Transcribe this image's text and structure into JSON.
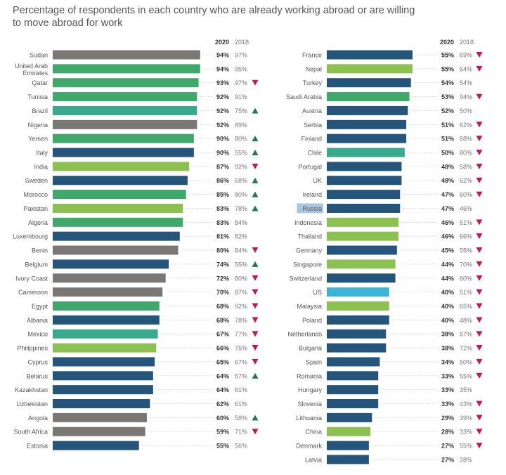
{
  "title": "Percentage of respondents in each country who are already working abroad or are willing to move abroad for work",
  "colors": {
    "gray": "#7a7775",
    "green": "#3fa86a",
    "teal": "#3aaa8f",
    "navy": "#25557a",
    "lime": "#8cc152",
    "cyan": "#3ab5d8",
    "up": "#1e7a52",
    "down": "#c2185b",
    "highlight": "#aac7e0"
  },
  "chart_data": {
    "type": "bar",
    "orientation": "horizontal",
    "x_range": [
      0,
      100
    ],
    "value_headers": [
      "2020",
      "2018"
    ],
    "panels": [
      {
        "rows": [
          {
            "country": "Sudan",
            "v2020": 94,
            "v2018": 97,
            "label2020": "94%",
            "label2018": "97%",
            "trend": "",
            "color": "gray"
          },
          {
            "country": "United Arab Emirates",
            "v2020": 94,
            "v2018": 95,
            "label2020": "94%",
            "label2018": "95%",
            "trend": "",
            "color": "green"
          },
          {
            "country": "Qatar",
            "v2020": 93,
            "v2018": 97,
            "label2020": "93%",
            "label2018": "97%",
            "trend": "down",
            "color": "green"
          },
          {
            "country": "Tunisia",
            "v2020": 92,
            "v2018": 91,
            "label2020": "92%",
            "label2018": "91%",
            "trend": "",
            "color": "green"
          },
          {
            "country": "Brazil",
            "v2020": 92,
            "v2018": 75,
            "label2020": "92%",
            "label2018": "75%",
            "trend": "up",
            "color": "teal"
          },
          {
            "country": "Nigeria",
            "v2020": 92,
            "v2018": 89,
            "label2020": "92%",
            "label2018": "89%",
            "trend": "",
            "color": "gray"
          },
          {
            "country": "Yemen",
            "v2020": 90,
            "v2018": 80,
            "label2020": "90%",
            "label2018": "80%",
            "trend": "up",
            "color": "green"
          },
          {
            "country": "Italy",
            "v2020": 90,
            "v2018": 55,
            "label2020": "90%",
            "label2018": "55%",
            "trend": "up",
            "color": "navy"
          },
          {
            "country": "India",
            "v2020": 87,
            "v2018": 92,
            "label2020": "87%",
            "label2018": "92%",
            "trend": "down",
            "color": "lime"
          },
          {
            "country": "Sweden",
            "v2020": 86,
            "v2018": 68,
            "label2020": "86%",
            "label2018": "68%",
            "trend": "up",
            "color": "navy"
          },
          {
            "country": "Morocco",
            "v2020": 85,
            "v2018": 80,
            "label2020": "85%",
            "label2018": "80%",
            "trend": "up",
            "color": "green"
          },
          {
            "country": "Pakistan",
            "v2020": 83,
            "v2018": 78,
            "label2020": "83%",
            "label2018": "78%",
            "trend": "up",
            "color": "lime"
          },
          {
            "country": "Algeria",
            "v2020": 83,
            "v2018": 84,
            "label2020": "83%",
            "label2018": "84%",
            "trend": "",
            "color": "green"
          },
          {
            "country": "Luxembourg",
            "v2020": 81,
            "v2018": 82,
            "label2020": "81%",
            "label2018": "82%",
            "trend": "",
            "color": "navy"
          },
          {
            "country": "Benin",
            "v2020": 80,
            "v2018": 84,
            "label2020": "80%",
            "label2018": "84%",
            "trend": "down",
            "color": "gray"
          },
          {
            "country": "Belgium",
            "v2020": 74,
            "v2018": 55,
            "label2020": "74%",
            "label2018": "55%",
            "trend": "up",
            "color": "navy"
          },
          {
            "country": "Ivory Coast",
            "v2020": 72,
            "v2018": 80,
            "label2020": "72%",
            "label2018": "80%",
            "trend": "down",
            "color": "gray"
          },
          {
            "country": "Cameroon",
            "v2020": 70,
            "v2018": 87,
            "label2020": "70%",
            "label2018": "87%",
            "trend": "down",
            "color": "gray"
          },
          {
            "country": "Egypt",
            "v2020": 68,
            "v2018": 92,
            "label2020": "68%",
            "label2018": "92%",
            "trend": "down",
            "color": "green"
          },
          {
            "country": "Albania",
            "v2020": 68,
            "v2018": 78,
            "label2020": "68%",
            "label2018": "78%",
            "trend": "down",
            "color": "navy"
          },
          {
            "country": "Mexico",
            "v2020": 67,
            "v2018": 77,
            "label2020": "67%",
            "label2018": "77%",
            "trend": "down",
            "color": "teal"
          },
          {
            "country": "Philippines",
            "v2020": 66,
            "v2018": 75,
            "label2020": "66%",
            "label2018": "75%",
            "trend": "down",
            "color": "lime"
          },
          {
            "country": "Cyprus",
            "v2020": 65,
            "v2018": 67,
            "label2020": "65%",
            "label2018": "67%",
            "trend": "down",
            "color": "navy"
          },
          {
            "country": "Belarus",
            "v2020": 64,
            "v2018": 57,
            "label2020": "64%",
            "label2018": "57%",
            "trend": "up",
            "color": "navy"
          },
          {
            "country": "Kazakhstan",
            "v2020": 64,
            "v2018": 61,
            "label2020": "64%",
            "label2018": "61%",
            "trend": "",
            "color": "navy"
          },
          {
            "country": "Uzbekistan",
            "v2020": 62,
            "v2018": 61,
            "label2020": "62%",
            "label2018": "61%",
            "trend": "",
            "color": "navy"
          },
          {
            "country": "Angola",
            "v2020": 60,
            "v2018": 58,
            "label2020": "60%",
            "label2018": "58%",
            "trend": "up",
            "color": "gray"
          },
          {
            "country": "South Africa",
            "v2020": 59,
            "v2018": 71,
            "label2020": "59%",
            "label2018": "71%",
            "trend": "down",
            "color": "gray"
          },
          {
            "country": "Estonia",
            "v2020": 55,
            "v2018": 56,
            "label2020": "55%",
            "label2018": "56%",
            "trend": "",
            "color": "navy"
          }
        ]
      },
      {
        "rows": [
          {
            "country": "France",
            "v2020": 55,
            "v2018": 69,
            "label2020": "55%",
            "label2018": "69%",
            "trend": "down",
            "color": "navy"
          },
          {
            "country": "Nepal",
            "v2020": 55,
            "v2018": 64,
            "label2020": "55%",
            "label2018": "64%",
            "trend": "down",
            "color": "lime"
          },
          {
            "country": "Turkey",
            "v2020": 54,
            "v2018": 54,
            "label2020": "54%",
            "label2018": "54%",
            "trend": "",
            "color": "navy"
          },
          {
            "country": "Saudi Arabia",
            "v2020": 53,
            "v2018": 94,
            "label2020": "53%",
            "label2018": "94%",
            "trend": "down",
            "color": "green"
          },
          {
            "country": "Austria",
            "v2020": 52,
            "v2018": 50,
            "label2020": "52%",
            "label2018": "50%",
            "trend": "",
            "color": "navy"
          },
          {
            "country": "Serbia",
            "v2020": 51,
            "v2018": 62,
            "label2020": "51%",
            "label2018": "62%",
            "trend": "down",
            "color": "navy"
          },
          {
            "country": "Finland",
            "v2020": 51,
            "v2018": 68,
            "label2020": "51%",
            "label2018": "68%",
            "trend": "down",
            "color": "navy"
          },
          {
            "country": "Chile",
            "v2020": 50,
            "v2018": 80,
            "label2020": "50%",
            "label2018": "80%",
            "trend": "down",
            "color": "teal"
          },
          {
            "country": "Portugal",
            "v2020": 48,
            "v2018": 58,
            "label2020": "48%",
            "label2018": "58%",
            "trend": "down",
            "color": "navy"
          },
          {
            "country": "UK",
            "v2020": 48,
            "v2018": 62,
            "label2020": "48%",
            "label2018": "62%",
            "trend": "down",
            "color": "navy"
          },
          {
            "country": "Ireland",
            "v2020": 47,
            "v2018": 60,
            "label2020": "47%",
            "label2018": "60%",
            "trend": "down",
            "color": "navy"
          },
          {
            "country": "Russia",
            "v2020": 47,
            "v2018": 46,
            "label2020": "47%",
            "label2018": "46%",
            "trend": "",
            "color": "navy",
            "highlighted": true
          },
          {
            "country": "Indonesia",
            "v2020": 46,
            "v2018": 51,
            "label2020": "46%",
            "label2018": "51%",
            "trend": "down",
            "color": "lime"
          },
          {
            "country": "Thailand",
            "v2020": 46,
            "v2018": 66,
            "label2020": "46%",
            "label2018": "66%",
            "trend": "down",
            "color": "lime"
          },
          {
            "country": "Germany",
            "v2020": 45,
            "v2018": 55,
            "label2020": "45%",
            "label2018": "55%",
            "trend": "down",
            "color": "navy"
          },
          {
            "country": "Singapore",
            "v2020": 44,
            "v2018": 70,
            "label2020": "44%",
            "label2018": "70%",
            "trend": "down",
            "color": "lime"
          },
          {
            "country": "Switzerland",
            "v2020": 44,
            "v2018": 60,
            "label2020": "44%",
            "label2018": "60%",
            "trend": "down",
            "color": "navy"
          },
          {
            "country": "US",
            "v2020": 40,
            "v2018": 51,
            "label2020": "40%",
            "label2018": "51%",
            "trend": "down",
            "color": "cyan"
          },
          {
            "country": "Malaysia",
            "v2020": 40,
            "v2018": 65,
            "label2020": "40%",
            "label2018": "65%",
            "trend": "down",
            "color": "lime"
          },
          {
            "country": "Poland",
            "v2020": 40,
            "v2018": 48,
            "label2020": "40%",
            "label2018": "48%",
            "trend": "down",
            "color": "navy"
          },
          {
            "country": "Netherlands",
            "v2020": 38,
            "v2018": 57,
            "label2020": "38%",
            "label2018": "57%",
            "trend": "down",
            "color": "navy"
          },
          {
            "country": "Bulgaria",
            "v2020": 38,
            "v2018": 72,
            "label2020": "38%",
            "label2018": "72%",
            "trend": "down",
            "color": "navy"
          },
          {
            "country": "Spain",
            "v2020": 34,
            "v2018": 50,
            "label2020": "34%",
            "label2018": "50%",
            "trend": "down",
            "color": "navy"
          },
          {
            "country": "Romania",
            "v2020": 33,
            "v2018": 55,
            "label2020": "33%",
            "label2018": "55%",
            "trend": "down",
            "color": "navy"
          },
          {
            "country": "Hungary",
            "v2020": 33,
            "v2018": 35,
            "label2020": "33%",
            "label2018": "35%",
            "trend": "",
            "color": "navy"
          },
          {
            "country": "Slovenia",
            "v2020": 33,
            "v2018": 43,
            "label2020": "33%",
            "label2018": "43%",
            "trend": "down",
            "color": "navy"
          },
          {
            "country": "Lithuania",
            "v2020": 29,
            "v2018": 39,
            "label2020": "29%",
            "label2018": "39%",
            "trend": "down",
            "color": "navy"
          },
          {
            "country": "China",
            "v2020": 28,
            "v2018": 33,
            "label2020": "28%",
            "label2018": "33%",
            "trend": "down",
            "color": "lime"
          },
          {
            "country": "Denmark",
            "v2020": 27,
            "v2018": 55,
            "label2020": "27%",
            "label2018": "55%",
            "trend": "down",
            "color": "navy"
          },
          {
            "country": "Latvia",
            "v2020": 27,
            "v2018": 28,
            "label2020": "27%",
            "label2018": "28%",
            "trend": "",
            "color": "navy"
          }
        ]
      }
    ]
  }
}
